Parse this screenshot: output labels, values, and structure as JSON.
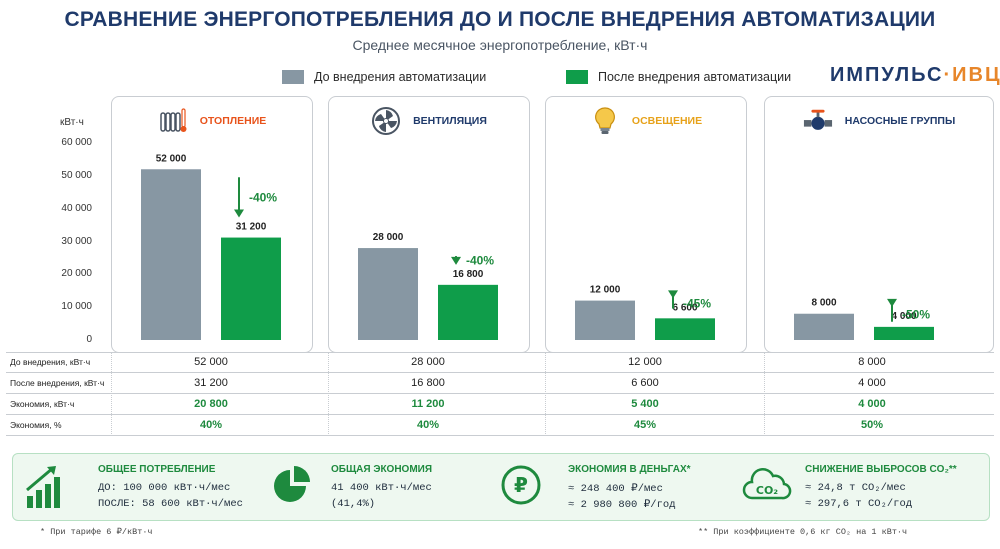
{
  "title": "СРАВНЕНИЕ ЭНЕРГОПОТРЕБЛЕНИЯ ДО И ПОСЛЕ ВНЕДРЕНИЯ АВТОМАТИЗАЦИИ",
  "subtitle": "Среднее месячное энергопотребление, кВт·ч",
  "legend": {
    "before": "До внедрения автоматизации",
    "after": "После внедрения автоматизации"
  },
  "brand": {
    "part1": "ИМПУЛЬС",
    "separator": "·",
    "part2": "ИВЦ"
  },
  "colors": {
    "before": "#8797a3",
    "after": "#0f9d4a",
    "green_text": "#1e8a3e",
    "title": "#1f3a6b"
  },
  "chart_data": {
    "type": "bar",
    "ylabel": "кВт·ч",
    "ylim": [
      0,
      60000
    ],
    "yticks": [
      "60 000",
      "50 000",
      "40 000",
      "30 000",
      "20 000",
      "10 000",
      "0"
    ],
    "yticks_values": [
      60000,
      50000,
      40000,
      30000,
      20000,
      10000,
      0
    ],
    "categories": [
      "ОТОПЛЕНИЕ",
      "ВЕНТИЛЯЦИЯ",
      "ОСВЕЩЕНИЕ",
      "НАСОСНЫЕ ГРУППЫ"
    ],
    "category_colors": [
      "#e8531b",
      "#1f3a6b",
      "#e7a21a",
      "#1f3a6b"
    ],
    "category_icons": [
      "radiator-thermometer-icon",
      "fan-icon",
      "lightbulb-icon",
      "pump-valve-icon"
    ],
    "series": [
      {
        "name": "До внедрения автоматизации",
        "values": [
          52000,
          28000,
          12000,
          8000
        ],
        "labels": [
          "52 000",
          "28 000",
          "12 000",
          "8 000"
        ]
      },
      {
        "name": "После внедрения автоматизации",
        "values": [
          31200,
          16800,
          6600,
          4000
        ],
        "labels": [
          "31 200",
          "16 800",
          "6 600",
          "4 000"
        ]
      }
    ],
    "reductions": [
      "-40%",
      "-40%",
      "-45%",
      "-50%"
    ]
  },
  "table": {
    "rows": [
      {
        "label": "До внедрения, кВт·ч",
        "values": [
          "52 000",
          "28 000",
          "12 000",
          "8 000"
        ],
        "highlight": false
      },
      {
        "label": "После внедрения, кВт·ч",
        "values": [
          "31 200",
          "16 800",
          "6 600",
          "4 000"
        ],
        "highlight": false
      },
      {
        "label": "Экономия, кВт·ч",
        "values": [
          "20 800",
          "11 200",
          "5 400",
          "4 000"
        ],
        "highlight": true
      },
      {
        "label": "Экономия, %",
        "values": [
          "40%",
          "40%",
          "45%",
          "50%"
        ],
        "highlight": true
      }
    ]
  },
  "summary": {
    "total": {
      "title": "ОБЩЕЕ ПОТРЕБЛЕНИЕ",
      "line1": "ДО: 100 000 кВт·ч/мес",
      "line2": "ПОСЛЕ: 58 600 кВт·ч/мес",
      "icon": "growth-bars-icon"
    },
    "savings": {
      "title": "ОБЩАЯ ЭКОНОМИЯ",
      "line1": "41 400 кВт·ч/мес",
      "line2": "(41,4%)",
      "icon": "pie-chart-icon"
    },
    "money": {
      "title": "ЭКОНОМИЯ В ДЕНЬГАХ*",
      "line1": "≈ 248 400 ₽/мес",
      "line2": "≈ 2 980 800 ₽/год",
      "icon": "ruble-coin-icon"
    },
    "co2": {
      "title": "СНИЖЕНИЕ ВЫБРОСОВ CO₂**",
      "line1": "≈ 24,8 т CO₂/мес",
      "line2": "≈ 297,6 т CO₂/год",
      "icon": "co2-cloud-icon"
    }
  },
  "footnotes": {
    "left": "* При тарифе 6 ₽/кВт·ч",
    "right": "** При коэффициенте 0,6 кг CO₂ на 1 кВт·ч"
  }
}
